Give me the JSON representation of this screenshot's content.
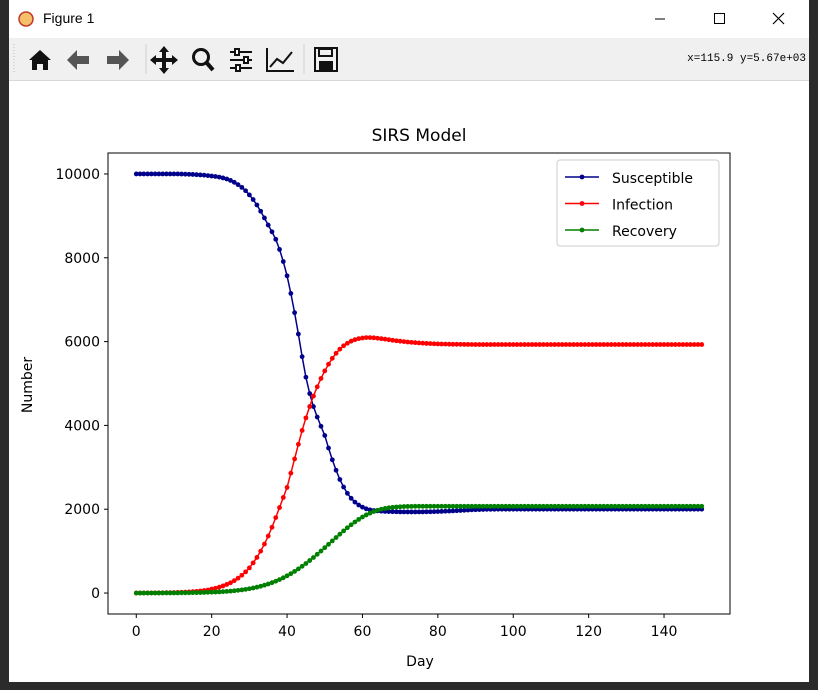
{
  "window": {
    "title": "Figure 1",
    "status": "x=115.9 y=5.67e+03"
  },
  "chart_data": {
    "type": "line",
    "title": "SIRS Model",
    "x_label": "Day",
    "y_label": "Number",
    "x": [
      0,
      1,
      2,
      3,
      4,
      5,
      6,
      7,
      8,
      9,
      10,
      11,
      12,
      13,
      14,
      15,
      16,
      17,
      18,
      19,
      20,
      21,
      22,
      23,
      24,
      25,
      26,
      27,
      28,
      29,
      30,
      31,
      32,
      33,
      34,
      35,
      36,
      37,
      38,
      39,
      40,
      41,
      42,
      43,
      44,
      45,
      46,
      47,
      48,
      49,
      50,
      51,
      52,
      53,
      54,
      55,
      56,
      57,
      58,
      59,
      60,
      61,
      62,
      63,
      64,
      65,
      66,
      67,
      68,
      69,
      70,
      71,
      72,
      73,
      74,
      75,
      76,
      77,
      78,
      79,
      80,
      81,
      82,
      83,
      84,
      85,
      86,
      87,
      88,
      89,
      90,
      91,
      92,
      93,
      94,
      95,
      96,
      97,
      98,
      99,
      100,
      101,
      102,
      103,
      104,
      105,
      106,
      107,
      108,
      109,
      110,
      111,
      112,
      113,
      114,
      115,
      116,
      117,
      118,
      119,
      120,
      121,
      122,
      123,
      124,
      125,
      126,
      127,
      128,
      129,
      130,
      131,
      132,
      133,
      134,
      135,
      136,
      137,
      138,
      139,
      140,
      141,
      142,
      143,
      144,
      145,
      146,
      147,
      148,
      149,
      150
    ],
    "series": [
      {
        "name": "Susceptible",
        "color": "#00008b",
        "values": [
          10000,
          10000,
          10000,
          10000,
          10000,
          10000,
          10000,
          10000,
          10000,
          10000,
          10000,
          10000,
          9998,
          9995,
          9992,
          9988,
          9983,
          9977,
          9970,
          9961,
          9950,
          9940,
          9925,
          9905,
          9880,
          9845,
          9800,
          9745,
          9680,
          9600,
          9500,
          9390,
          9260,
          9110,
          8950,
          8780,
          8620,
          8440,
          8200,
          7910,
          7570,
          7150,
          6690,
          6180,
          5640,
          5150,
          4760,
          4450,
          4200,
          3980,
          3760,
          3460,
          3180,
          2930,
          2710,
          2530,
          2380,
          2260,
          2170,
          2100,
          2050,
          2010,
          1985,
          1970,
          1960,
          1953,
          1948,
          1944,
          1941,
          1939,
          1937,
          1936,
          1935,
          1935,
          1935,
          1936,
          1937,
          1938,
          1940,
          1942,
          1945,
          1948,
          1952,
          1956,
          1960,
          1965,
          1970,
          1975,
          1980,
          1985,
          1989,
          1992,
          1995,
          1997,
          1998,
          1999,
          2000,
          2000,
          2000,
          2000,
          2000,
          2000,
          2000,
          2000,
          2000,
          2000,
          2000,
          2000,
          2000,
          2000,
          2000,
          2000,
          2000,
          2000,
          2000,
          2000,
          2000,
          2000,
          2000,
          2000,
          2000,
          2000,
          2000,
          2000,
          2000,
          2000,
          2000,
          2000,
          2000,
          2000,
          2000,
          2000,
          2000,
          2000,
          2000,
          2000,
          2000,
          2000,
          2000,
          2000,
          2000,
          2000,
          2000,
          2000,
          2000,
          2000,
          2000,
          2000,
          2000,
          2000,
          2000
        ]
      },
      {
        "name": "Infection",
        "color": "#ff0000",
        "values": [
          1,
          1,
          2,
          2,
          3,
          4,
          5,
          6,
          8,
          10,
          12,
          15,
          18,
          22,
          27,
          33,
          40,
          49,
          60,
          73,
          95,
          115,
          140,
          170,
          205,
          245,
          295,
          355,
          425,
          505,
          600,
          720,
          850,
          1000,
          1170,
          1360,
          1570,
          1800,
          2040,
          2280,
          2520,
          2860,
          3200,
          3550,
          3880,
          4180,
          4450,
          4700,
          4920,
          5120,
          5300,
          5460,
          5600,
          5720,
          5820,
          5900,
          5960,
          6010,
          6045,
          6070,
          6085,
          6095,
          6095,
          6090,
          6080,
          6070,
          6058,
          6045,
          6032,
          6020,
          6010,
          6000,
          5990,
          5982,
          5975,
          5968,
          5962,
          5957,
          5952,
          5948,
          5945,
          5942,
          5940,
          5938,
          5936,
          5935,
          5934,
          5933,
          5932,
          5931,
          5930,
          5930,
          5930,
          5930,
          5930,
          5930,
          5930,
          5930,
          5930,
          5930,
          5930,
          5930,
          5930,
          5930,
          5930,
          5930,
          5930,
          5930,
          5930,
          5930,
          5930,
          5930,
          5930,
          5930,
          5930,
          5930,
          5930,
          5930,
          5930,
          5930,
          5930,
          5930,
          5930,
          5930,
          5930,
          5930,
          5930,
          5930,
          5930,
          5930,
          5930,
          5930,
          5930,
          5930,
          5930,
          5930,
          5930,
          5930,
          5930,
          5930,
          5930,
          5930,
          5930,
          5930,
          5930,
          5930,
          5930,
          5930,
          5930,
          5930,
          5930
        ]
      },
      {
        "name": "Recovery",
        "color": "#008000",
        "values": [
          0,
          0,
          0,
          0,
          1,
          1,
          1,
          2,
          2,
          3,
          3,
          4,
          5,
          6,
          7,
          8,
          10,
          12,
          14,
          17,
          20,
          24,
          28,
          33,
          39,
          46,
          54,
          64,
          75,
          88,
          103,
          120,
          140,
          162,
          187,
          215,
          247,
          282,
          321,
          364,
          411,
          462,
          517,
          576,
          639,
          705,
          775,
          848,
          924,
          1002,
          1082,
          1163,
          1244,
          1325,
          1405,
          1483,
          1558,
          1629,
          1696,
          1758,
          1814,
          1864,
          1907,
          1944,
          1975,
          2000,
          2019,
          2034,
          2045,
          2053,
          2059,
          2063,
          2066,
          2068,
          2069,
          2070,
          2070,
          2070,
          2070,
          2070,
          2070,
          2070,
          2070,
          2070,
          2070,
          2070,
          2070,
          2070,
          2070,
          2070,
          2070,
          2070,
          2070,
          2070,
          2070,
          2070,
          2070,
          2070,
          2070,
          2070,
          2070,
          2070,
          2070,
          2070,
          2070,
          2070,
          2070,
          2070,
          2070,
          2070,
          2070,
          2070,
          2070,
          2070,
          2070,
          2070,
          2070,
          2070,
          2070,
          2070,
          2070,
          2070,
          2070,
          2070,
          2070,
          2070,
          2070,
          2070,
          2070,
          2070,
          2070,
          2070,
          2070,
          2070,
          2070,
          2070,
          2070,
          2070,
          2070,
          2070,
          2070,
          2070,
          2070,
          2070,
          2070,
          2070,
          2070,
          2070,
          2070,
          2070,
          2070
        ]
      }
    ],
    "xlim": [
      -7.5,
      157.5
    ],
    "xticks": [
      0,
      20,
      40,
      60,
      80,
      100,
      120,
      140
    ],
    "ylim": [
      -500,
      10500
    ],
    "yticks": [
      0,
      2000,
      4000,
      6000,
      8000,
      10000
    ],
    "legend": "upper right"
  }
}
